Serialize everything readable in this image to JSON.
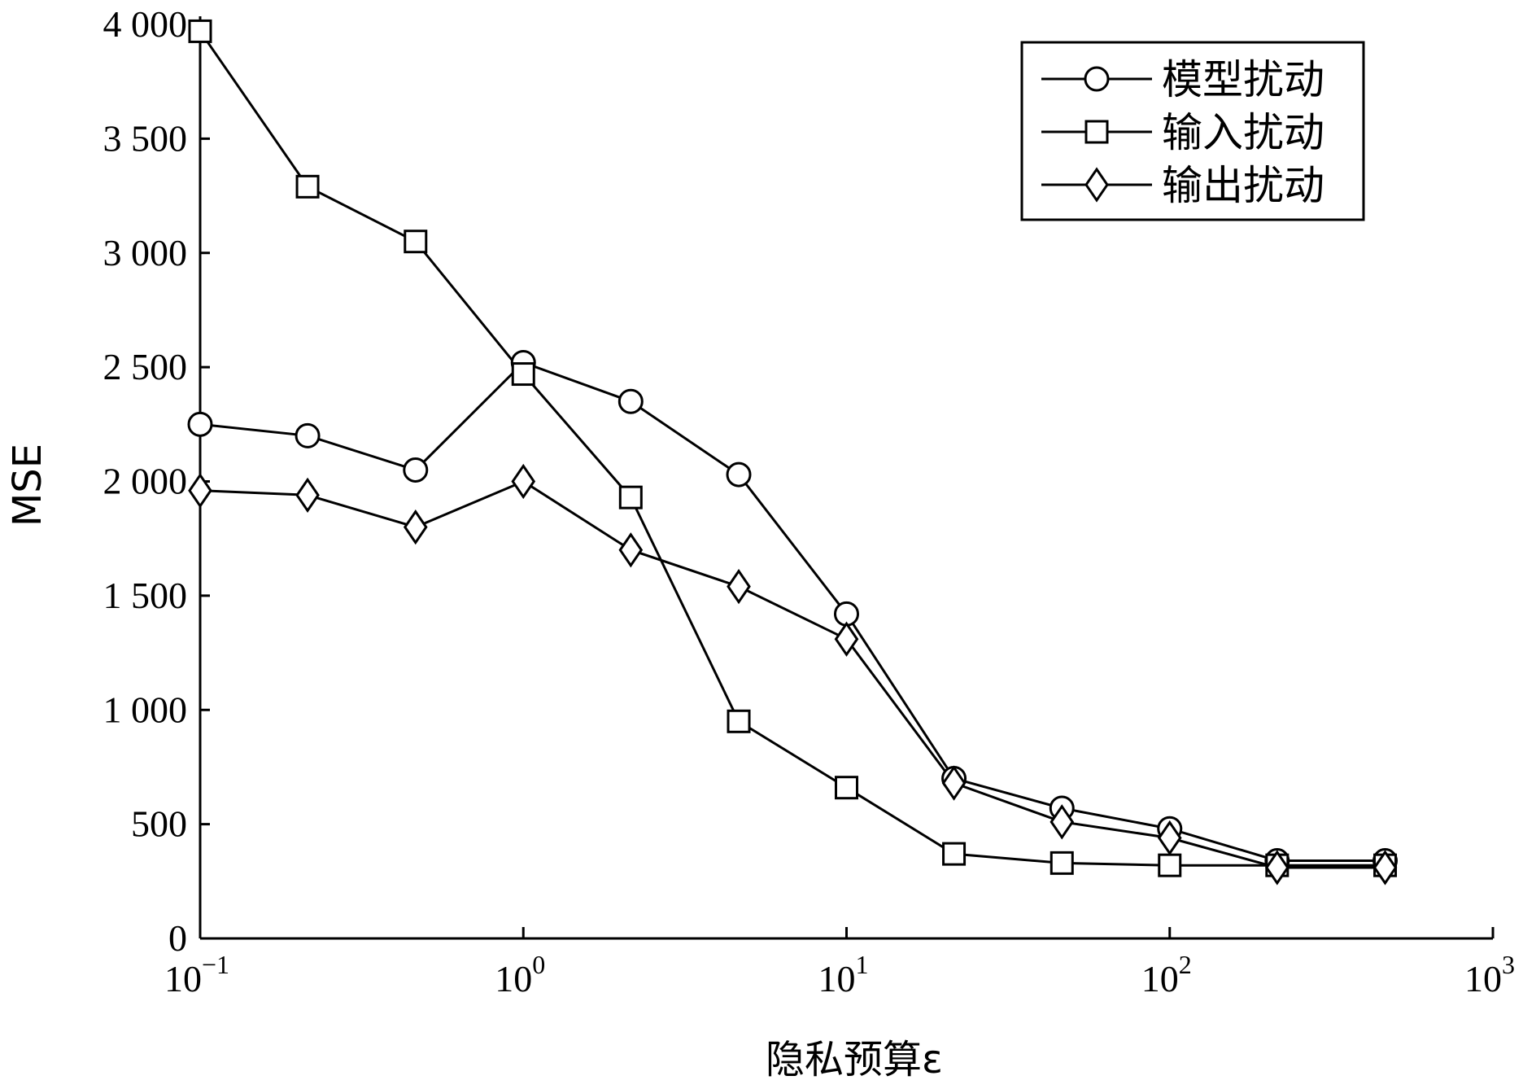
{
  "chart_data": {
    "type": "line",
    "xlabel": "隐私预算ε",
    "ylabel": "MSE",
    "xscale": "log",
    "xlim": [
      0.1,
      1000
    ],
    "ylim": [
      0,
      4000
    ],
    "grid": false,
    "legend_position": "top-right",
    "x": [
      0.1,
      0.215,
      0.464,
      1,
      2.15,
      4.64,
      10,
      21.5,
      46.4,
      100,
      215,
      464
    ],
    "x_ticks": [
      {
        "value": 0.1,
        "base": "10",
        "exp": "−1"
      },
      {
        "value": 1,
        "base": "10",
        "exp": "0"
      },
      {
        "value": 10,
        "base": "10",
        "exp": "1"
      },
      {
        "value": 100,
        "base": "10",
        "exp": "2"
      },
      {
        "value": 1000,
        "base": "10",
        "exp": "3"
      }
    ],
    "y_ticks": [
      {
        "value": 0,
        "label": "0"
      },
      {
        "value": 500,
        "label": "500"
      },
      {
        "value": 1000,
        "label": "1 000"
      },
      {
        "value": 1500,
        "label": "1 500"
      },
      {
        "value": 2000,
        "label": "2 000"
      },
      {
        "value": 2500,
        "label": "2 500"
      },
      {
        "value": 3000,
        "label": "3 000"
      },
      {
        "value": 3500,
        "label": "3 500"
      },
      {
        "value": 4000,
        "label": "4 000"
      }
    ],
    "series": [
      {
        "name": "模型扰动",
        "marker": "circle",
        "values": [
          2250,
          2200,
          2050,
          2520,
          2350,
          2030,
          1420,
          700,
          570,
          480,
          340,
          340
        ]
      },
      {
        "name": "输入扰动",
        "marker": "square",
        "values": [
          3970,
          3290,
          3050,
          2470,
          1930,
          950,
          660,
          370,
          330,
          320,
          320,
          320
        ]
      },
      {
        "name": "输出扰动",
        "marker": "diamond",
        "values": [
          1960,
          1940,
          1800,
          2000,
          1700,
          1540,
          1310,
          680,
          510,
          440,
          310,
          310
        ]
      }
    ]
  }
}
